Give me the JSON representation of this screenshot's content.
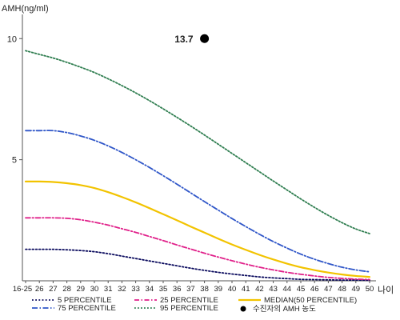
{
  "chart_data": {
    "type": "line",
    "ylabel": "AMH(ng/ml)",
    "xlabel": "나이",
    "ylim": [
      0,
      11
    ],
    "yticks": [
      5,
      10
    ],
    "categories": [
      "16-25",
      "26",
      "27",
      "28",
      "29",
      "30",
      "31",
      "32",
      "33",
      "34",
      "35",
      "36",
      "37",
      "38",
      "39",
      "40",
      "41",
      "42",
      "43",
      "44",
      "45",
      "46",
      "47",
      "48",
      "49",
      "50"
    ],
    "series": [
      {
        "name": "5 PERCENTILE",
        "color": "#0b0b5e",
        "dash": "1.8,2.4",
        "values": [
          1.3,
          1.3,
          1.3,
          1.28,
          1.25,
          1.2,
          1.12,
          1.02,
          0.92,
          0.82,
          0.72,
          0.62,
          0.52,
          0.43,
          0.35,
          0.28,
          0.22,
          0.16,
          0.12,
          0.09,
          0.06,
          0.05,
          0.04,
          0.03,
          0.03,
          0.02
        ]
      },
      {
        "name": "25 PERCENTILE",
        "color": "#e0218a",
        "dash": "6,2.5,1.5,2.5",
        "values": [
          2.6,
          2.6,
          2.6,
          2.58,
          2.52,
          2.42,
          2.3,
          2.15,
          2.0,
          1.83,
          1.66,
          1.48,
          1.31,
          1.14,
          0.98,
          0.83,
          0.69,
          0.56,
          0.45,
          0.35,
          0.27,
          0.2,
          0.14,
          0.1,
          0.07,
          0.05
        ]
      },
      {
        "name": "MEDIAN(50 PERCENTILE)",
        "color": "#f2c300",
        "dash": "",
        "values": [
          4.1,
          4.1,
          4.08,
          4.03,
          3.95,
          3.83,
          3.66,
          3.46,
          3.24,
          3.0,
          2.75,
          2.5,
          2.24,
          1.99,
          1.74,
          1.5,
          1.28,
          1.07,
          0.88,
          0.71,
          0.56,
          0.44,
          0.34,
          0.26,
          0.2,
          0.16
        ]
      },
      {
        "name": "75 PERCENTILE",
        "color": "#2f56c8",
        "dash": "7,2.5,1.5,2.5",
        "values": [
          6.2,
          6.2,
          6.2,
          6.12,
          5.98,
          5.8,
          5.57,
          5.3,
          5.0,
          4.68,
          4.34,
          3.99,
          3.63,
          3.27,
          2.92,
          2.57,
          2.24,
          1.92,
          1.62,
          1.35,
          1.1,
          0.89,
          0.71,
          0.56,
          0.45,
          0.37
        ]
      },
      {
        "name": "95 PERCENTILE",
        "color": "#2e7d4f",
        "dash": "1.8,2.2",
        "values": [
          9.5,
          9.35,
          9.2,
          9.02,
          8.82,
          8.6,
          8.34,
          8.06,
          7.76,
          7.44,
          7.1,
          6.75,
          6.39,
          6.02,
          5.64,
          5.26,
          4.88,
          4.5,
          4.12,
          3.75,
          3.38,
          3.03,
          2.7,
          2.4,
          2.14,
          1.95
        ]
      }
    ],
    "marker": {
      "name": "수진자의 AMH 농도",
      "x": "38",
      "y": 10.0,
      "label": "13.7",
      "color": "#000000"
    },
    "legend_position": "bottom"
  }
}
